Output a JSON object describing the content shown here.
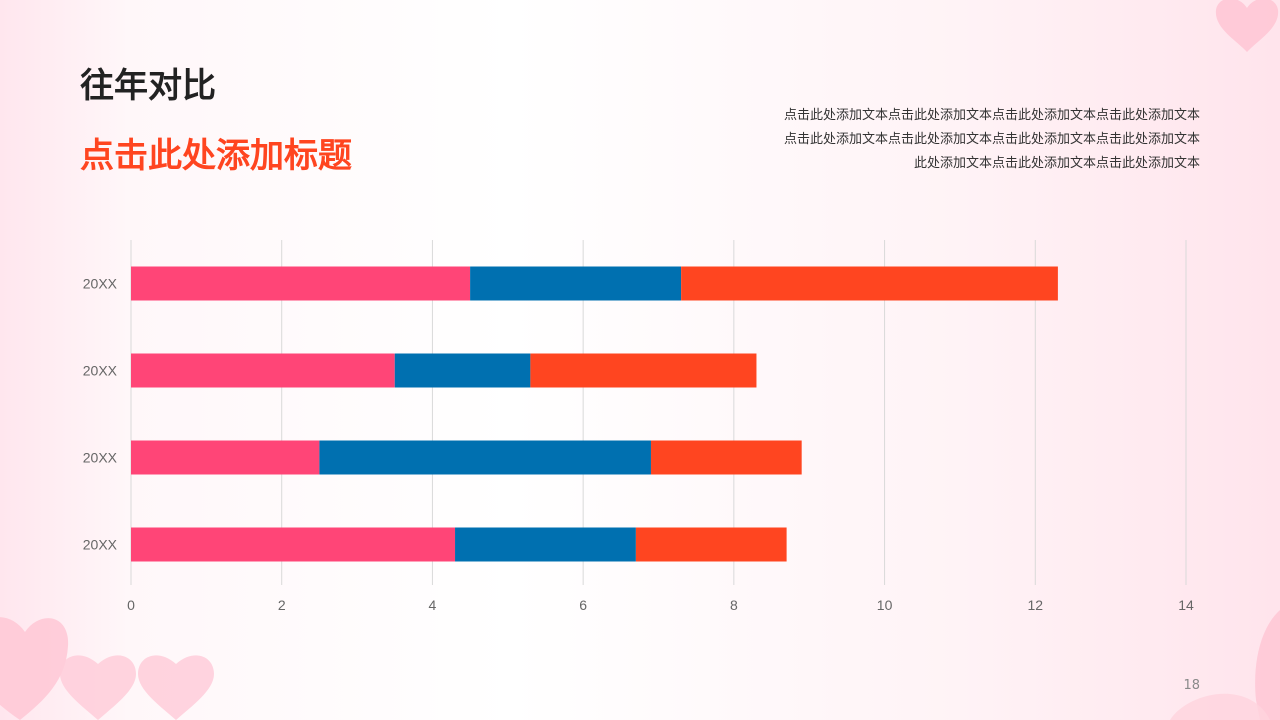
{
  "slide": {
    "title": "往年对比",
    "subtitle": "点击此处添加标题",
    "body_lines": [
      "点击此处添加文本点击此处添加文本点击此处添加文本点击此处添加文本",
      "点击此处添加文本点击此处添加文本点击此处添加文本点击此处添加文本",
      "此处添加文本点击此处添加文本点击此处添加文本"
    ],
    "page_number": "18"
  },
  "colors": {
    "accent": "#ff4520",
    "series_1": "#ff4577",
    "series_2": "#0070b0",
    "series_3": "#ff4520",
    "heart": "#ffc7d5"
  },
  "chart_data": {
    "type": "bar",
    "orientation": "horizontal",
    "stacked": true,
    "categories": [
      "20XX",
      "20XX",
      "20XX",
      "20XX"
    ],
    "series": [
      {
        "values": [
          4.5,
          3.5,
          2.5,
          4.3
        ]
      },
      {
        "values": [
          2.8,
          1.8,
          4.4,
          2.4
        ]
      },
      {
        "values": [
          5.0,
          3.0,
          2.0,
          2.0
        ]
      }
    ],
    "xlim": [
      0,
      14
    ],
    "xticks": [
      0,
      2,
      4,
      6,
      8,
      10,
      12,
      14
    ],
    "grid": true,
    "legend": "none"
  }
}
